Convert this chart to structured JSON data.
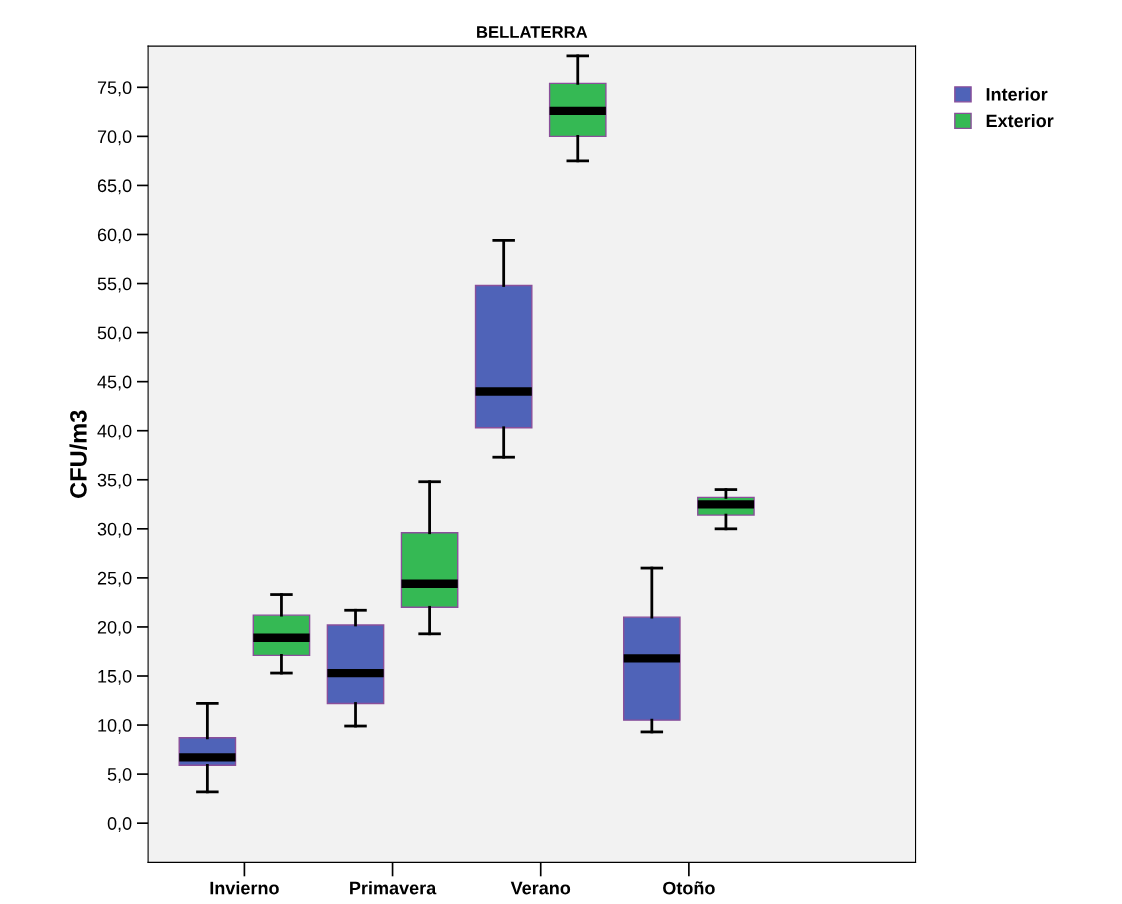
{
  "chart_data": {
    "type": "box",
    "title": "BELLATERRA",
    "ylabel": "CFU/m3",
    "categories": [
      "Invierno",
      "Primavera",
      "Verano",
      "Otoño"
    ],
    "series": [
      {
        "name": "Interior",
        "color": "#4f63b8",
        "boxes": [
          {
            "low": 3.2,
            "q1": 5.9,
            "median": 6.7,
            "q3": 8.7,
            "high": 12.2
          },
          {
            "low": 9.9,
            "q1": 12.2,
            "median": 15.3,
            "q3": 20.2,
            "high": 21.7
          },
          {
            "low": 37.3,
            "q1": 40.3,
            "median": 44.0,
            "q3": 54.8,
            "high": 59.4
          },
          {
            "low": 9.3,
            "q1": 10.5,
            "median": 16.8,
            "q3": 21.0,
            "high": 26.0
          }
        ]
      },
      {
        "name": "Exterior",
        "color": "#35b954",
        "boxes": [
          {
            "low": 15.3,
            "q1": 17.1,
            "median": 18.9,
            "q3": 21.2,
            "high": 23.3
          },
          {
            "low": 19.3,
            "q1": 22.0,
            "median": 24.4,
            "q3": 29.6,
            "high": 34.8
          },
          {
            "low": 67.5,
            "q1": 70.0,
            "median": 72.6,
            "q3": 75.4,
            "high": 78.2
          },
          {
            "low": 30.0,
            "q1": 31.4,
            "median": 32.5,
            "q3": 33.2,
            "high": 34.0
          }
        ]
      }
    ],
    "ylim": [
      -4.0,
      79.2
    ],
    "yticks": [
      {
        "value": 0,
        "label": "0,0"
      },
      {
        "value": 5,
        "label": "5,0"
      },
      {
        "value": 10,
        "label": "10,0"
      },
      {
        "value": 15,
        "label": "15,0"
      },
      {
        "value": 20,
        "label": "20,0"
      },
      {
        "value": 25,
        "label": "25,0"
      },
      {
        "value": 30,
        "label": "30,0"
      },
      {
        "value": 35,
        "label": "35,0"
      },
      {
        "value": 40,
        "label": "40,0"
      },
      {
        "value": 45,
        "label": "45,0"
      },
      {
        "value": 50,
        "label": "50,0"
      },
      {
        "value": 55,
        "label": "55,0"
      },
      {
        "value": 60,
        "label": "60,0"
      },
      {
        "value": 65,
        "label": "65,0"
      },
      {
        "value": 70,
        "label": "70,0"
      },
      {
        "value": 75,
        "label": "75,0"
      }
    ],
    "grid": false,
    "legend": "top right"
  }
}
